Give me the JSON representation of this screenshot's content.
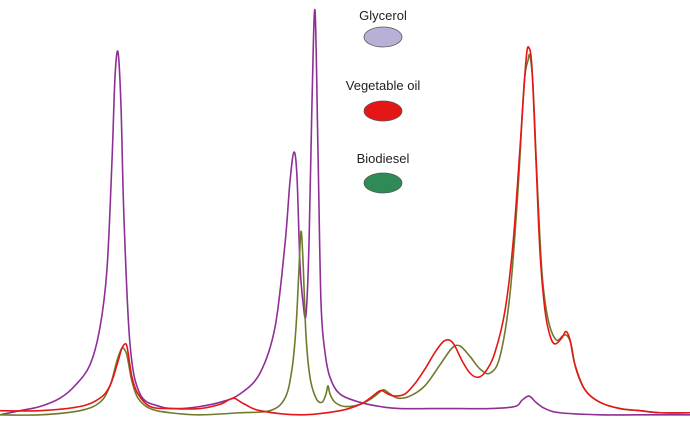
{
  "chart_data": {
    "type": "line",
    "title": "",
    "xlabel": "",
    "ylabel": "",
    "xlim": [
      0,
      690
    ],
    "ylim": [
      0,
      1
    ],
    "grid": false,
    "legend_placement": "top-center",
    "series": [
      {
        "name": "Glycerol",
        "color": "#8e2f96",
        "marker_color": "#b9b0d8",
        "x": [
          0,
          20,
          40,
          60,
          75,
          90,
          100,
          107,
          112,
          115,
          118,
          121,
          124,
          130,
          140,
          160,
          180,
          200,
          220,
          240,
          260,
          275,
          285,
          290,
          294,
          297,
          300,
          303,
          306,
          309,
          312,
          315,
          318,
          321,
          325,
          330,
          340,
          360,
          380,
          400,
          430,
          460,
          490,
          515,
          522,
          529,
          536,
          545,
          560,
          600,
          640,
          690
        ],
        "y": [
          0.01,
          0.02,
          0.03,
          0.05,
          0.08,
          0.13,
          0.22,
          0.36,
          0.62,
          0.82,
          0.88,
          0.75,
          0.48,
          0.18,
          0.06,
          0.03,
          0.025,
          0.03,
          0.04,
          0.06,
          0.11,
          0.22,
          0.42,
          0.57,
          0.64,
          0.58,
          0.37,
          0.28,
          0.25,
          0.42,
          0.76,
          0.98,
          0.64,
          0.28,
          0.16,
          0.1,
          0.06,
          0.04,
          0.03,
          0.025,
          0.025,
          0.025,
          0.025,
          0.03,
          0.045,
          0.055,
          0.04,
          0.025,
          0.015,
          0.01,
          0.01,
          0.01
        ]
      },
      {
        "name": "Vegetable oil",
        "color": "#e51616",
        "marker_color": "#e51616",
        "x": [
          0,
          40,
          80,
          100,
          110,
          117,
          122,
          126,
          128,
          132,
          138,
          150,
          170,
          200,
          220,
          228,
          234,
          238,
          245,
          260,
          300,
          340,
          360,
          370,
          378,
          382,
          388,
          395,
          405,
          415,
          425,
          435,
          443,
          448,
          452,
          456,
          462,
          470,
          478,
          486,
          495,
          505,
          513,
          520,
          526,
          529,
          532,
          536,
          540,
          545,
          550,
          555,
          562,
          566,
          570,
          575,
          585,
          600,
          620,
          640,
          660,
          690
        ],
        "y": [
          0.02,
          0.02,
          0.03,
          0.05,
          0.08,
          0.13,
          0.17,
          0.18,
          0.16,
          0.1,
          0.06,
          0.03,
          0.025,
          0.025,
          0.035,
          0.045,
          0.05,
          0.045,
          0.035,
          0.02,
          0.01,
          0.02,
          0.035,
          0.05,
          0.065,
          0.068,
          0.06,
          0.055,
          0.06,
          0.085,
          0.12,
          0.16,
          0.185,
          0.19,
          0.185,
          0.17,
          0.14,
          0.11,
          0.1,
          0.115,
          0.16,
          0.26,
          0.42,
          0.65,
          0.86,
          0.89,
          0.84,
          0.62,
          0.4,
          0.26,
          0.2,
          0.18,
          0.195,
          0.21,
          0.19,
          0.13,
          0.07,
          0.04,
          0.025,
          0.02,
          0.015,
          0.015
        ]
      },
      {
        "name": "Biodiesel",
        "color": "#6f7a2c",
        "marker_color": "#2e8b57",
        "x": [
          0,
          40,
          80,
          100,
          110,
          117,
          122,
          126,
          128,
          132,
          138,
          150,
          170,
          200,
          240,
          270,
          285,
          292,
          296,
          299,
          301,
          303,
          306,
          310,
          316,
          322,
          326,
          328,
          330,
          335,
          345,
          360,
          372,
          380,
          384,
          390,
          398,
          410,
          425,
          440,
          452,
          460,
          470,
          480,
          490,
          500,
          510,
          518,
          524,
          528,
          530,
          533,
          537,
          542,
          548,
          556,
          563,
          567,
          571,
          576,
          585,
          600,
          620,
          640,
          660,
          690
        ],
        "y": [
          0.01,
          0.01,
          0.02,
          0.04,
          0.08,
          0.14,
          0.17,
          0.16,
          0.14,
          0.09,
          0.05,
          0.025,
          0.015,
          0.01,
          0.015,
          0.02,
          0.05,
          0.12,
          0.22,
          0.36,
          0.45,
          0.38,
          0.2,
          0.1,
          0.05,
          0.04,
          0.06,
          0.08,
          0.06,
          0.04,
          0.03,
          0.035,
          0.05,
          0.065,
          0.07,
          0.06,
          0.05,
          0.055,
          0.08,
          0.13,
          0.17,
          0.175,
          0.15,
          0.12,
          0.11,
          0.15,
          0.3,
          0.55,
          0.8,
          0.86,
          0.87,
          0.8,
          0.58,
          0.35,
          0.24,
          0.19,
          0.2,
          0.2,
          0.18,
          0.12,
          0.07,
          0.04,
          0.025,
          0.02,
          0.015,
          0.015
        ]
      }
    ]
  }
}
